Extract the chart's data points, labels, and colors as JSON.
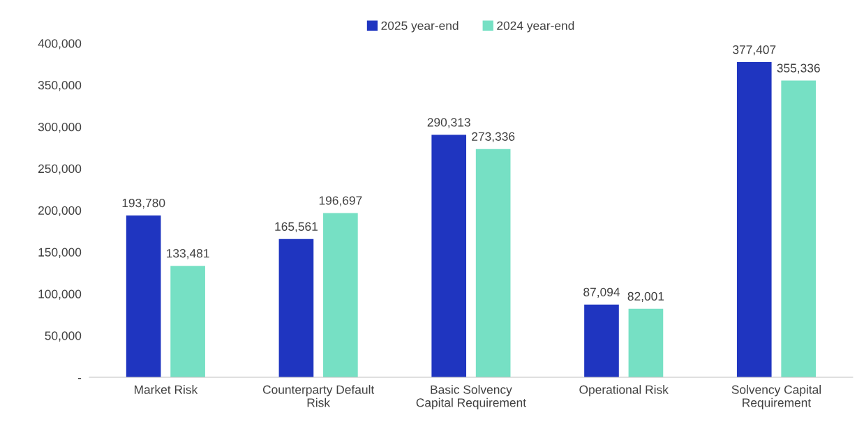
{
  "chart_data": {
    "type": "bar",
    "categories": [
      "Market Risk",
      "Counterparty Default\nRisk",
      "Basic Solvency\nCapital Requirement",
      "Operational Risk",
      "Solvency Capital\nRequirement"
    ],
    "series": [
      {
        "name": "2025 year-end",
        "color": "#1f35c0",
        "values": [
          193780,
          165561,
          290313,
          87094,
          377407
        ],
        "value_labels": [
          "193,780",
          "165,561",
          "290,313",
          "87,094",
          "377,407"
        ]
      },
      {
        "name": "2024 year-end",
        "color": "#76e0c4",
        "values": [
          133481,
          196697,
          273336,
          82001,
          355336
        ],
        "value_labels": [
          "133,481",
          "196,697",
          "273,336",
          "82,001",
          "355,336"
        ]
      }
    ],
    "ylim": [
      0,
      400000
    ],
    "yticks": [
      {
        "value": 0,
        "label": "-"
      },
      {
        "value": 50000,
        "label": "50,000"
      },
      {
        "value": 100000,
        "label": "100,000"
      },
      {
        "value": 150000,
        "label": "150,000"
      },
      {
        "value": 200000,
        "label": "200,000"
      },
      {
        "value": 250000,
        "label": "250,000"
      },
      {
        "value": 300000,
        "label": "300,000"
      },
      {
        "value": 350000,
        "label": "350,000"
      },
      {
        "value": 400000,
        "label": "400,000"
      }
    ],
    "grid": false,
    "legend": "top"
  }
}
